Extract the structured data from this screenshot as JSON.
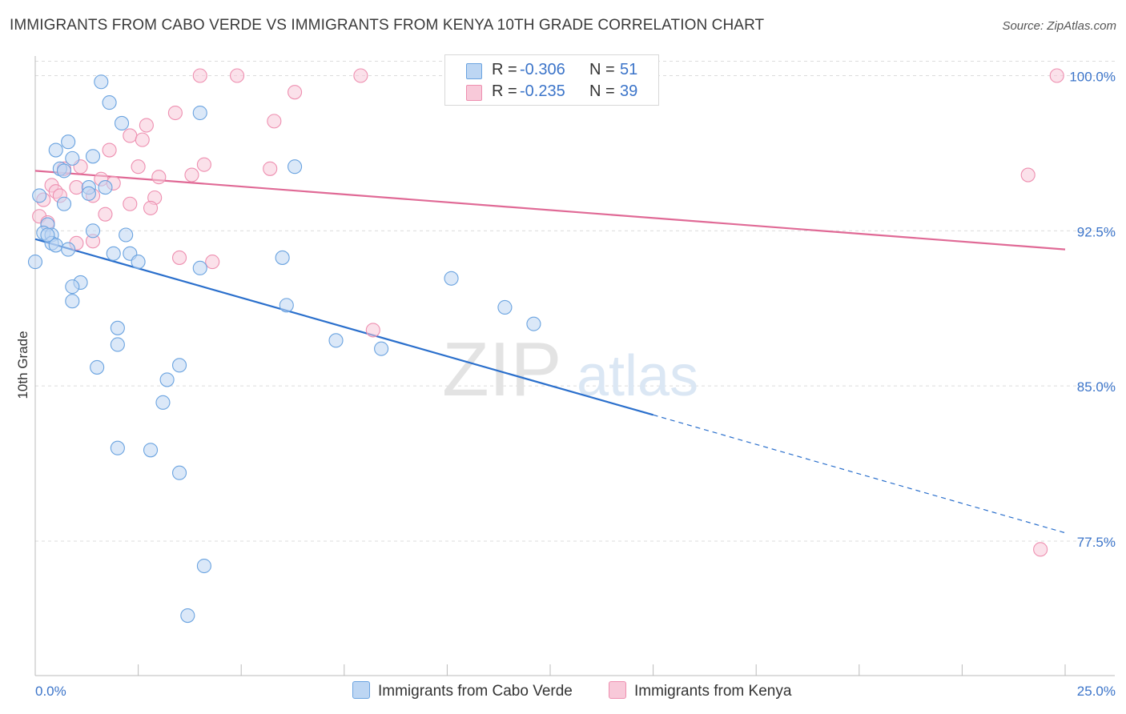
{
  "chart_data": {
    "type": "scatter",
    "title": "IMMIGRANTS FROM CABO VERDE VS IMMIGRANTS FROM KENYA 10TH GRADE CORRELATION CHART",
    "source": "Source: ZipAtlas.com",
    "xlabel": "",
    "ylabel": "10th Grade",
    "xlim": [
      0.0,
      25.0
    ],
    "ylim": [
      71.0,
      100.6
    ],
    "x_tick_labels": [
      {
        "value": 0.0,
        "label": "0.0%"
      },
      {
        "value": 25.0,
        "label": "25.0%"
      }
    ],
    "y_tick_labels": [
      {
        "value": 100.0,
        "label": "100.0%"
      },
      {
        "value": 92.5,
        "label": "92.5%"
      },
      {
        "value": 85.0,
        "label": "85.0%"
      },
      {
        "value": 77.5,
        "label": "77.5%"
      }
    ],
    "watermark": {
      "zip": "ZIP",
      "atlas": "atlas"
    },
    "series": [
      {
        "name": "Immigrants from Cabo Verde",
        "color": "#6aa3e0",
        "fill": "#bdd6f3",
        "line_color": "#2a6fcc",
        "R": "-0.306",
        "N": "51",
        "trend": {
          "x0": 0.0,
          "y0": 92.1,
          "x1": 15.0,
          "y1": 83.6,
          "dash_x1": 25.0,
          "dash_y1": 77.9
        },
        "points": [
          [
            1.6,
            99.7
          ],
          [
            1.8,
            98.7
          ],
          [
            2.1,
            97.7
          ],
          [
            4.0,
            98.2
          ],
          [
            0.8,
            96.8
          ],
          [
            0.5,
            96.4
          ],
          [
            1.4,
            96.1
          ],
          [
            0.9,
            96.0
          ],
          [
            6.3,
            95.6
          ],
          [
            0.6,
            95.5
          ],
          [
            0.7,
            95.4
          ],
          [
            1.7,
            94.6
          ],
          [
            1.3,
            94.6
          ],
          [
            1.3,
            94.3
          ],
          [
            0.1,
            94.2
          ],
          [
            0.7,
            93.8
          ],
          [
            0.3,
            92.8
          ],
          [
            0.2,
            92.4
          ],
          [
            0.4,
            92.3
          ],
          [
            1.4,
            92.5
          ],
          [
            2.2,
            92.3
          ],
          [
            0.4,
            91.9
          ],
          [
            0.5,
            91.8
          ],
          [
            0.8,
            91.6
          ],
          [
            1.9,
            91.4
          ],
          [
            2.3,
            91.4
          ],
          [
            2.5,
            91.0
          ],
          [
            0.0,
            91.0
          ],
          [
            6.0,
            91.2
          ],
          [
            4.0,
            90.7
          ],
          [
            10.1,
            90.2
          ],
          [
            1.1,
            90.0
          ],
          [
            0.9,
            89.8
          ],
          [
            0.9,
            89.1
          ],
          [
            6.1,
            88.9
          ],
          [
            11.4,
            88.8
          ],
          [
            12.1,
            88.0
          ],
          [
            2.0,
            87.8
          ],
          [
            7.3,
            87.2
          ],
          [
            2.0,
            87.0
          ],
          [
            8.4,
            86.8
          ],
          [
            3.5,
            86.0
          ],
          [
            1.5,
            85.9
          ],
          [
            3.2,
            85.3
          ],
          [
            3.1,
            84.2
          ],
          [
            2.0,
            82.0
          ],
          [
            2.8,
            81.9
          ],
          [
            3.5,
            80.8
          ],
          [
            4.1,
            76.3
          ],
          [
            3.7,
            73.9
          ],
          [
            0.3,
            92.3
          ]
        ]
      },
      {
        "name": "Immigrants from Kenya",
        "color": "#ee8fb0",
        "fill": "#f8c9d9",
        "line_color": "#e06a96",
        "R": "-0.235",
        "N": "39",
        "trend": {
          "x0": 0.0,
          "y0": 95.4,
          "x1": 25.0,
          "y1": 91.6
        },
        "points": [
          [
            4.0,
            100.0
          ],
          [
            4.9,
            100.0
          ],
          [
            7.9,
            100.0
          ],
          [
            24.8,
            100.0
          ],
          [
            6.3,
            99.2
          ],
          [
            3.4,
            98.2
          ],
          [
            5.8,
            97.8
          ],
          [
            2.7,
            97.6
          ],
          [
            2.3,
            97.1
          ],
          [
            2.6,
            96.9
          ],
          [
            1.8,
            96.4
          ],
          [
            4.1,
            95.7
          ],
          [
            2.5,
            95.6
          ],
          [
            5.7,
            95.5
          ],
          [
            1.1,
            95.6
          ],
          [
            0.7,
            95.5
          ],
          [
            3.8,
            95.2
          ],
          [
            3.0,
            95.1
          ],
          [
            24.1,
            95.2
          ],
          [
            1.6,
            95.0
          ],
          [
            1.9,
            94.8
          ],
          [
            0.4,
            94.7
          ],
          [
            0.5,
            94.4
          ],
          [
            1.0,
            94.6
          ],
          [
            1.4,
            94.2
          ],
          [
            0.6,
            94.2
          ],
          [
            2.9,
            94.1
          ],
          [
            0.2,
            94.0
          ],
          [
            2.3,
            93.8
          ],
          [
            2.8,
            93.6
          ],
          [
            1.7,
            93.3
          ],
          [
            0.1,
            93.2
          ],
          [
            1.4,
            92.0
          ],
          [
            1.0,
            91.9
          ],
          [
            3.5,
            91.2
          ],
          [
            4.3,
            91.0
          ],
          [
            8.2,
            87.7
          ],
          [
            24.4,
            77.1
          ],
          [
            0.3,
            92.9
          ]
        ]
      }
    ]
  }
}
